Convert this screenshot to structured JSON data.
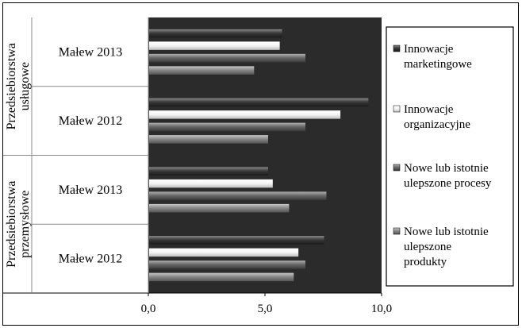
{
  "chart_data": {
    "type": "bar",
    "orientation": "horizontal",
    "groups": [
      {
        "label": "Przedsiebiorstwa usługowe",
        "lines": [
          "Przedsiebiorstwa",
          "usługowe"
        ],
        "categories": [
          "Małew 2013",
          "Małew 2012"
        ]
      },
      {
        "label": "Przedsiebiorstwa przemysłowe",
        "lines": [
          "Przedsiebiorstwa",
          "przemysłowe"
        ],
        "categories": [
          "Małew 2013",
          "Małew 2012"
        ]
      }
    ],
    "categories": [
      "Przedsiebiorstwa usługowe / Małew 2013",
      "Przedsiebiorstwa usługowe / Małew 2012",
      "Przedsiebiorstwa przemysłowe / Małew 2013",
      "Przedsiebiorstwa przemysłowe / Małew 2012"
    ],
    "series": [
      {
        "name": "Innowacje marketingowe",
        "lines": [
          "Innowacje",
          "marketingowe"
        ],
        "color": "#3a3a3a",
        "values": [
          5.7,
          9.4,
          5.1,
          7.5
        ]
      },
      {
        "name": "Innowacje organizacyjne",
        "lines": [
          "Innowacje",
          "organizacyjne"
        ],
        "color": "#f0f0f0",
        "values": [
          5.6,
          8.2,
          5.3,
          6.4
        ]
      },
      {
        "name": "Nowe lub istotnie ulepszone procesy",
        "lines": [
          "Nowe lub istotnie",
          "ulepszone procesy"
        ],
        "color": "#6a6a6a",
        "values": [
          6.7,
          6.7,
          7.6,
          6.7
        ]
      },
      {
        "name": "Nowe lub istotnie ulepszone produkty",
        "lines": [
          "Nowe lub istotnie",
          "ulepszone",
          "produkty"
        ],
        "color": "#8a8a8a",
        "values": [
          4.5,
          5.1,
          6.0,
          6.2
        ]
      }
    ],
    "xlim": [
      0,
      10
    ],
    "xticks": [
      "0,0",
      "5,0",
      "10,0"
    ],
    "grid": false,
    "legend_position": "right",
    "plot_background": "#2b2b2b"
  }
}
